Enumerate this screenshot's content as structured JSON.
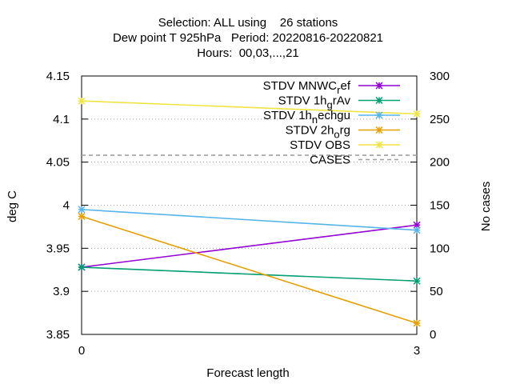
{
  "chart_data": {
    "type": "line",
    "title_lines": [
      "Selection: ALL using    26 stations",
      "Dew point T 925hPa   Period: 20220816-20220821",
      "Hours:  00,03,...,21"
    ],
    "xlabel": "Forecast length",
    "ylabel": "deg C",
    "y2label": "No cases",
    "x": [
      0,
      3
    ],
    "xticks": [
      "0",
      "3"
    ],
    "xlim": [
      0,
      3
    ],
    "ylim": [
      3.85,
      4.15
    ],
    "yticks": [
      "3.85",
      "3.9",
      "3.95",
      "4",
      "4.05",
      "4.1",
      "4.15"
    ],
    "y2lim": [
      0,
      300
    ],
    "y2ticks": [
      "0",
      "50",
      "100",
      "150",
      "200",
      "250",
      "300"
    ],
    "grid": true,
    "legend_position": "top-right",
    "series": [
      {
        "name": "STDV MNWC_ref",
        "legend_main": "STDV MNWC",
        "legend_sub": "r",
        "legend_tail": "ef",
        "color": "#9400d3",
        "axis": "y",
        "marker": "star",
        "dash": "solid",
        "values": [
          3.928,
          3.977
        ]
      },
      {
        "name": "STDV 1h_grAv",
        "legend_main": "STDV 1h",
        "legend_sub": "g",
        "legend_tail": "rAv",
        "color": "#009e73",
        "axis": "y",
        "marker": "star",
        "dash": "solid",
        "values": [
          3.928,
          3.912
        ]
      },
      {
        "name": "STDV 1h_nechgu",
        "legend_main": "STDV 1h",
        "legend_sub": "n",
        "legend_tail": "echgu",
        "color": "#56b4e9",
        "axis": "y",
        "marker": "star",
        "dash": "solid",
        "values": [
          3.995,
          3.971
        ]
      },
      {
        "name": "STDV 2h_org",
        "legend_main": "STDV 2h",
        "legend_sub": "o",
        "legend_tail": "rg",
        "color": "#e69f00",
        "axis": "y",
        "marker": "star",
        "dash": "solid",
        "values": [
          3.987,
          3.863
        ]
      },
      {
        "name": "STDV OBS",
        "legend_main": "STDV OBS",
        "legend_sub": "",
        "legend_tail": "",
        "color": "#f0e442",
        "axis": "y",
        "marker": "star",
        "dash": "solid",
        "values": [
          4.121,
          4.106
        ]
      },
      {
        "name": "CASES",
        "legend_main": "CASES",
        "legend_sub": "",
        "legend_tail": "",
        "color": "#a0a0a0",
        "axis": "y2",
        "marker": "none",
        "dash": "dashed",
        "values": [
          208,
          208
        ]
      }
    ]
  }
}
